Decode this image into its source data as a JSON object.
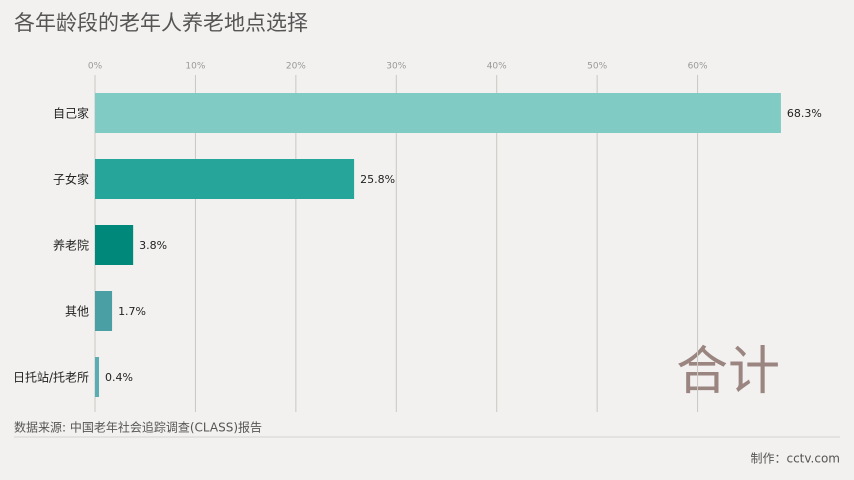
{
  "chart_data": {
    "type": "bar",
    "orientation": "horizontal",
    "title": "各年龄段的老年人养老地点选择",
    "categories": [
      "自己家",
      "子女家",
      "养老院",
      "其他",
      "日托站/托老所"
    ],
    "values": [
      68.3,
      25.8,
      3.8,
      1.7,
      0.4
    ],
    "value_labels": [
      "68.3%",
      "25.8%",
      "3.8%",
      "1.7%",
      "0.4%"
    ],
    "colors": [
      "#80cbc4",
      "#26a69a",
      "#00897b",
      "#4a9fa5",
      "#5aaeb3"
    ],
    "xlim": [
      0,
      70
    ],
    "xticks": [
      {
        "value": 0,
        "label": "0%"
      },
      {
        "value": 10,
        "label": "10%"
      },
      {
        "value": 20,
        "label": "20%"
      },
      {
        "value": 30,
        "label": "30%"
      },
      {
        "value": 40,
        "label": "40%"
      },
      {
        "value": 50,
        "label": "50%"
      },
      {
        "value": 60,
        "label": "60%"
      }
    ],
    "grid": true,
    "annotation": "合计",
    "source": "数据来源: 中国老年社会追踪调查(CLASS)报告",
    "credit": "制作：cctv.com"
  }
}
